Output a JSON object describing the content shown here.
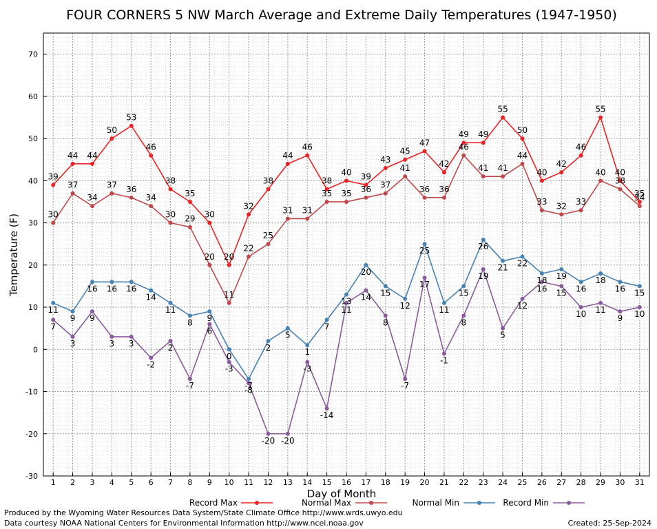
{
  "credits": {
    "line1": "Produced by the Wyoming Water Resources Data System/State Climate Office http://www.wrds.uwyo.edu",
    "line2": "Data courtesy NOAA National Centers for Environmental Information http://www.ncei.noaa.gov",
    "created": "Created:  25-Sep-2024"
  },
  "chart_data": {
    "type": "line",
    "title": "FOUR CORNERS 5 NW March Average and Extreme Daily Temperatures (1947-1950)",
    "xlabel": "Day of Month",
    "ylabel": "Temperature (F)",
    "xlim": [
      0.5,
      31.5
    ],
    "ylim": [
      -30,
      75
    ],
    "yticks": [
      -30,
      -20,
      -10,
      0,
      10,
      20,
      30,
      40,
      50,
      60,
      70
    ],
    "x": [
      1,
      2,
      3,
      4,
      5,
      6,
      7,
      8,
      9,
      10,
      11,
      12,
      13,
      14,
      15,
      16,
      17,
      18,
      19,
      20,
      21,
      22,
      23,
      24,
      25,
      26,
      27,
      28,
      29,
      30,
      31
    ],
    "grid": true,
    "legend_position": "bottom",
    "series": [
      {
        "name": "Record Max",
        "color": "#ee2222",
        "values": [
          39,
          44,
          44,
          50,
          53,
          46,
          38,
          35,
          30,
          20,
          32,
          38,
          44,
          46,
          38,
          40,
          39,
          43,
          45,
          47,
          42,
          49,
          49,
          55,
          50,
          40,
          42,
          46,
          55,
          40,
          35
        ]
      },
      {
        "name": "Normal Max",
        "color": "#c04848",
        "values": [
          30,
          37,
          34,
          37,
          36,
          34,
          30,
          29,
          20,
          11,
          22,
          25,
          31,
          31,
          35,
          35,
          36,
          37,
          41,
          36,
          36,
          46,
          41,
          41,
          44,
          33,
          32,
          33,
          40,
          38,
          34
        ]
      },
      {
        "name": "Normal Min",
        "color": "#4682b4",
        "values": [
          11,
          9,
          16,
          16,
          16,
          14,
          11,
          8,
          9,
          0,
          -7,
          2,
          5,
          1,
          7,
          13,
          20,
          15,
          12,
          25,
          11,
          15,
          26,
          21,
          22,
          18,
          19,
          16,
          18,
          16,
          15
        ]
      },
      {
        "name": "Record Min",
        "color": "#8b5a9e",
        "values": [
          7,
          3,
          9,
          3,
          3,
          -2,
          2,
          -7,
          6,
          -3,
          -8,
          -20,
          -20,
          -3,
          -14,
          11,
          14,
          8,
          -7,
          17,
          -1,
          8,
          19,
          5,
          12,
          16,
          15,
          10,
          11,
          9,
          10
        ]
      }
    ]
  }
}
